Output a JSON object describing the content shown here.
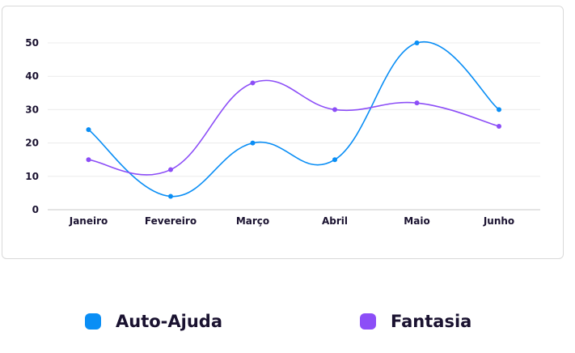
{
  "chart_data": {
    "type": "line",
    "categories": [
      "Janeiro",
      "Fevereiro",
      "Março",
      "Abril",
      "Maio",
      "Junho"
    ],
    "series": [
      {
        "name": "Auto-Ajuda",
        "color": "#0a8ef5",
        "values": [
          24,
          4,
          20,
          15,
          50,
          30
        ]
      },
      {
        "name": "Fantasia",
        "color": "#8c4ef7",
        "values": [
          15,
          12,
          38,
          30,
          32,
          25
        ]
      }
    ],
    "yticks": [
      0,
      10,
      20,
      30,
      40,
      50
    ],
    "ylim": [
      0,
      50
    ],
    "grid": true,
    "legend_position": "bottom",
    "smooth": true
  },
  "legend": [
    {
      "label": "Auto-Ajuda",
      "color": "#0a8ef5"
    },
    {
      "label": "Fantasia",
      "color": "#8c4ef7"
    }
  ]
}
